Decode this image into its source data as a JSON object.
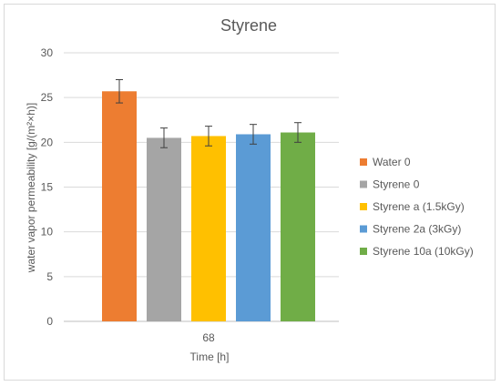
{
  "chart_data": {
    "type": "bar",
    "title": "Styrene",
    "xlabel": "Time [h]",
    "ylabel": "water vapor permeability [g/(m²×h)]",
    "categories": [
      "68"
    ],
    "ylim": [
      0,
      30
    ],
    "yticks": [
      0,
      5,
      10,
      15,
      20,
      25,
      30
    ],
    "grid": true,
    "legend_position": "right",
    "series": [
      {
        "name": "Water 0",
        "values": [
          25.7
        ],
        "error": [
          1.3
        ],
        "color": "#ED7D31"
      },
      {
        "name": "Styrene 0",
        "values": [
          20.5
        ],
        "error": [
          1.1
        ],
        "color": "#A5A5A5"
      },
      {
        "name": "Styrene a (1.5kGy)",
        "values": [
          20.7
        ],
        "error": [
          1.1
        ],
        "color": "#FFC000"
      },
      {
        "name": "Styrene 2a (3kGy)",
        "values": [
          20.9
        ],
        "error": [
          1.1
        ],
        "color": "#5B9BD5"
      },
      {
        "name": "Styrene 10a (10kGy)",
        "values": [
          21.1
        ],
        "error": [
          1.1
        ],
        "color": "#70AD47"
      }
    ]
  }
}
